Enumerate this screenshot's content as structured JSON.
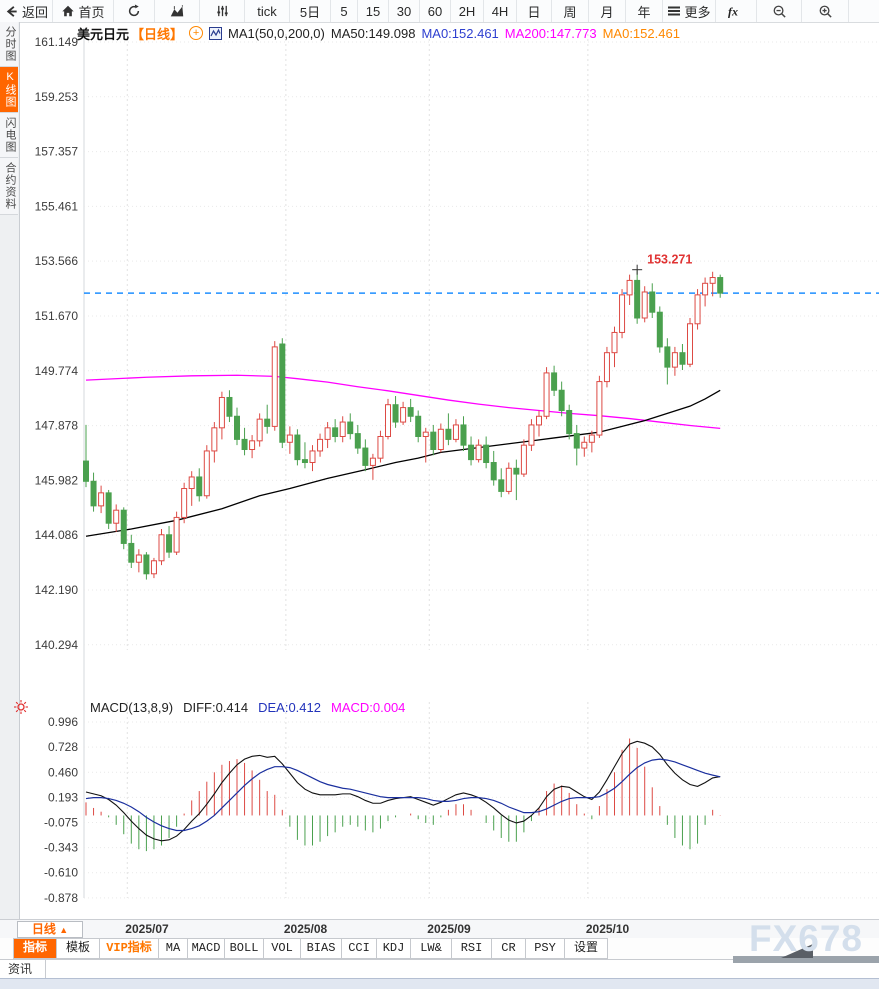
{
  "toolbar": {
    "items": [
      {
        "name": "back-button",
        "icon": "back",
        "label": "返回"
      },
      {
        "name": "home-button",
        "icon": "home",
        "label": "首页"
      },
      {
        "name": "refresh-button",
        "icon": "refresh",
        "label": ""
      },
      {
        "name": "area-chart-button",
        "icon": "area-chart",
        "label": ""
      },
      {
        "name": "indicator-sliders-button",
        "icon": "sliders",
        "label": ""
      },
      {
        "name": "timeframe-tick",
        "icon": "",
        "label": "tick"
      },
      {
        "name": "timeframe-5d",
        "icon": "",
        "label": "5日"
      },
      {
        "name": "timeframe-5min",
        "icon": "",
        "label": "5"
      },
      {
        "name": "timeframe-15min",
        "icon": "",
        "label": "15"
      },
      {
        "name": "timeframe-30min",
        "icon": "",
        "label": "30"
      },
      {
        "name": "timeframe-60min",
        "icon": "",
        "label": "60"
      },
      {
        "name": "timeframe-2h",
        "icon": "",
        "label": "2H"
      },
      {
        "name": "timeframe-4h",
        "icon": "",
        "label": "4H"
      },
      {
        "name": "timeframe-day",
        "icon": "",
        "label": "日"
      },
      {
        "name": "timeframe-week",
        "icon": "",
        "label": "周"
      },
      {
        "name": "timeframe-month",
        "icon": "",
        "label": "月"
      },
      {
        "name": "timeframe-year",
        "icon": "",
        "label": "年"
      },
      {
        "name": "more-button",
        "icon": "menu",
        "label": "更多"
      },
      {
        "name": "formula-button",
        "icon": "fx",
        "label": ""
      },
      {
        "name": "zoom-out-button",
        "icon": "zoom-out",
        "label": ""
      },
      {
        "name": "zoom-in-button",
        "icon": "zoom-in",
        "label": ""
      }
    ]
  },
  "sidebar": {
    "items": [
      {
        "label": "分时图",
        "active": false
      },
      {
        "label": "K线图",
        "active": true
      },
      {
        "label": "闪电图",
        "active": false
      },
      {
        "label": "合约资料",
        "active": false
      }
    ]
  },
  "legend": {
    "symbol": "美元日元",
    "period": "【日线】",
    "ma_config": "MA1(50,0,200,0)",
    "ma50": "MA50:149.098",
    "ma0_blue": "MA0:152.461",
    "ma200": "MA200:147.773",
    "ma0_orange": "MA0:152.461"
  },
  "macd_legend": {
    "title": "MACD(13,8,9)",
    "diff": "DIFF:0.414",
    "dea": "DEA:0.412",
    "macd": "MACD:0.004"
  },
  "bottom": {
    "timeframe_label": "日线",
    "timeframe_arrow": "▲",
    "indicator_tabs": [
      {
        "label": "指标",
        "style": "active"
      },
      {
        "label": "模板",
        "style": ""
      },
      {
        "label": "VIP指标",
        "style": "vip"
      },
      {
        "label": "MA",
        "style": ""
      },
      {
        "label": "MACD",
        "style": ""
      },
      {
        "label": "BOLL",
        "style": ""
      },
      {
        "label": "VOL",
        "style": ""
      },
      {
        "label": "BIAS",
        "style": ""
      },
      {
        "label": "CCI",
        "style": ""
      },
      {
        "label": "KDJ",
        "style": ""
      },
      {
        "label": "LW&",
        "style": ""
      },
      {
        "label": "RSI",
        "style": ""
      },
      {
        "label": "CR",
        "style": ""
      },
      {
        "label": "PSY",
        "style": ""
      },
      {
        "label": "设置",
        "style": ""
      }
    ],
    "news_tab": "资讯",
    "watermark": "FX678"
  },
  "colors": {
    "up": "#dd4a44",
    "down": "#4aa04e",
    "ma50": "#000000",
    "ma200": "#ff00ff",
    "last_price_line": "#1e8fff",
    "diff_line": "#111111",
    "dea_line": "#1a2f9e",
    "annotation": "#e03333",
    "legend_blue": "#2e3fd0",
    "legend_magenta": "#ff00ff",
    "legend_orange": "#ff8800",
    "accent_orange": "#ff6600",
    "grid": "#e9e9e9",
    "axis_text": "#3c3c3c"
  },
  "chart_data": [
    {
      "type": "candlestick",
      "title": "美元日元 日线 (USD/JPY daily)",
      "ylabel": "price",
      "grid": true,
      "y_ticks": [
        "161.149",
        "159.253",
        "157.357",
        "155.461",
        "153.566",
        "151.670",
        "149.774",
        "147.878",
        "145.982",
        "144.086",
        "142.190",
        "140.294"
      ],
      "x_month_markers": [
        {
          "index": 6,
          "label": "2025/07"
        },
        {
          "index": 27,
          "label": "2025/08"
        },
        {
          "index": 46,
          "label": "2025/09"
        },
        {
          "index": 67,
          "label": "2025/10"
        }
      ],
      "last_price": 152.461,
      "high_annotation": {
        "index": 73,
        "price": 153.271,
        "label": "153.271"
      },
      "candles": [
        [
          146.65,
          147.9,
          145.75,
          145.95
        ],
        [
          145.95,
          146.25,
          144.9,
          145.1
        ],
        [
          145.1,
          145.8,
          144.85,
          145.55
        ],
        [
          145.55,
          145.65,
          144.3,
          144.5
        ],
        [
          144.5,
          145.15,
          144.2,
          144.95
        ],
        [
          144.95,
          145.05,
          143.6,
          143.8
        ],
        [
          143.8,
          144.1,
          142.95,
          143.15
        ],
        [
          143.15,
          143.6,
          142.8,
          143.4
        ],
        [
          143.4,
          143.5,
          142.55,
          142.75
        ],
        [
          142.75,
          143.3,
          142.6,
          143.2
        ],
        [
          143.2,
          144.3,
          143.05,
          144.1
        ],
        [
          144.1,
          144.4,
          143.3,
          143.5
        ],
        [
          143.5,
          144.9,
          143.4,
          144.7
        ],
        [
          144.7,
          145.9,
          144.5,
          145.7
        ],
        [
          145.7,
          146.3,
          145.1,
          146.1
        ],
        [
          146.1,
          146.4,
          145.25,
          145.45
        ],
        [
          145.45,
          147.2,
          145.35,
          147.0
        ],
        [
          147.0,
          148.0,
          146.6,
          147.8
        ],
        [
          147.8,
          149.05,
          147.4,
          148.85
        ],
        [
          148.85,
          149.1,
          148.0,
          148.2
        ],
        [
          148.2,
          148.5,
          147.2,
          147.4
        ],
        [
          147.4,
          147.8,
          146.85,
          147.05
        ],
        [
          147.05,
          147.55,
          146.75,
          147.35
        ],
        [
          147.35,
          148.3,
          147.15,
          148.1
        ],
        [
          148.1,
          148.6,
          147.6,
          147.85
        ],
        [
          147.85,
          150.8,
          147.7,
          150.6
        ],
        [
          150.7,
          150.9,
          147.1,
          147.3
        ],
        [
          147.3,
          147.85,
          146.9,
          147.55
        ],
        [
          147.55,
          147.75,
          146.5,
          146.7
        ],
        [
          146.7,
          147.3,
          146.4,
          146.6
        ],
        [
          146.6,
          147.2,
          146.3,
          147.0
        ],
        [
          147.0,
          147.6,
          146.8,
          147.4
        ],
        [
          147.4,
          148.0,
          147.1,
          147.8
        ],
        [
          147.8,
          148.1,
          147.3,
          147.5
        ],
        [
          147.5,
          148.2,
          147.3,
          148.0
        ],
        [
          148.0,
          148.3,
          147.4,
          147.6
        ],
        [
          147.6,
          147.9,
          146.9,
          147.1
        ],
        [
          147.1,
          147.4,
          146.3,
          146.5
        ],
        [
          146.5,
          146.9,
          146.0,
          146.75
        ],
        [
          146.75,
          147.7,
          146.6,
          147.5
        ],
        [
          147.5,
          148.8,
          147.4,
          148.6
        ],
        [
          148.6,
          148.9,
          147.8,
          148.0
        ],
        [
          148.0,
          148.7,
          147.9,
          148.5
        ],
        [
          148.5,
          148.8,
          148.0,
          148.2
        ],
        [
          148.2,
          148.4,
          147.3,
          147.5
        ],
        [
          147.5,
          147.8,
          146.6,
          147.65
        ],
        [
          147.65,
          147.9,
          146.85,
          147.05
        ],
        [
          147.05,
          147.95,
          146.95,
          147.75
        ],
        [
          147.75,
          148.3,
          147.2,
          147.4
        ],
        [
          147.4,
          148.1,
          147.3,
          147.9
        ],
        [
          147.9,
          148.2,
          147.0,
          147.2
        ],
        [
          147.2,
          147.5,
          146.5,
          146.7
        ],
        [
          146.7,
          147.4,
          146.6,
          147.2
        ],
        [
          147.2,
          147.5,
          146.4,
          146.6
        ],
        [
          146.6,
          147.0,
          145.8,
          146.0
        ],
        [
          146.0,
          146.4,
          145.4,
          145.6
        ],
        [
          145.6,
          146.6,
          145.5,
          146.4
        ],
        [
          146.4,
          146.7,
          145.3,
          146.2
        ],
        [
          146.2,
          147.4,
          146.1,
          147.2
        ],
        [
          147.2,
          148.1,
          147.0,
          147.9
        ],
        [
          147.9,
          148.4,
          147.5,
          148.2
        ],
        [
          148.2,
          149.9,
          148.1,
          149.7
        ],
        [
          149.7,
          149.95,
          148.9,
          149.1
        ],
        [
          149.1,
          149.4,
          148.2,
          148.4
        ],
        [
          148.4,
          148.6,
          147.4,
          147.6
        ],
        [
          147.6,
          147.9,
          146.5,
          147.1
        ],
        [
          147.1,
          147.5,
          146.8,
          147.3
        ],
        [
          147.3,
          147.7,
          146.95,
          147.55
        ],
        [
          147.55,
          149.6,
          147.45,
          149.4
        ],
        [
          149.4,
          150.6,
          149.2,
          150.4
        ],
        [
          150.4,
          151.3,
          149.9,
          151.1
        ],
        [
          151.1,
          152.6,
          150.9,
          152.4
        ],
        [
          152.4,
          153.1,
          152.05,
          152.9
        ],
        [
          152.9,
          153.27,
          151.4,
          151.6
        ],
        [
          151.6,
          152.7,
          151.45,
          152.5
        ],
        [
          152.5,
          152.8,
          151.6,
          151.8
        ],
        [
          151.8,
          152.0,
          150.4,
          150.6
        ],
        [
          150.6,
          150.9,
          149.3,
          149.9
        ],
        [
          149.9,
          150.6,
          149.6,
          150.4
        ],
        [
          150.4,
          150.7,
          149.8,
          150.0
        ],
        [
          150.0,
          151.6,
          149.9,
          151.4
        ],
        [
          151.4,
          152.6,
          151.2,
          152.4
        ],
        [
          152.4,
          153.0,
          152.0,
          152.8
        ],
        [
          152.8,
          153.2,
          152.35,
          153.0
        ],
        [
          153.0,
          153.1,
          152.3,
          152.46
        ]
      ],
      "ma50_anchors": [
        [
          0,
          144.05
        ],
        [
          6,
          144.3
        ],
        [
          12,
          144.6
        ],
        [
          18,
          145.0
        ],
        [
          23,
          145.45
        ],
        [
          27,
          145.7
        ],
        [
          32,
          146.05
        ],
        [
          37,
          146.35
        ],
        [
          41,
          146.6
        ],
        [
          44,
          146.75
        ],
        [
          47,
          146.95
        ],
        [
          50,
          147.05
        ],
        [
          53,
          147.15
        ],
        [
          56,
          147.25
        ],
        [
          59,
          147.35
        ],
        [
          62,
          147.45
        ],
        [
          65,
          147.55
        ],
        [
          68,
          147.65
        ],
        [
          71,
          147.85
        ],
        [
          74,
          148.05
        ],
        [
          77,
          148.3
        ],
        [
          80,
          148.55
        ],
        [
          82,
          148.8
        ],
        [
          84,
          149.1
        ]
      ],
      "ma200_anchors": [
        [
          0,
          149.45
        ],
        [
          8,
          149.55
        ],
        [
          14,
          149.6
        ],
        [
          20,
          149.62
        ],
        [
          25,
          149.58
        ],
        [
          28,
          149.5
        ],
        [
          32,
          149.38
        ],
        [
          36,
          149.22
        ],
        [
          40,
          149.08
        ],
        [
          44,
          148.92
        ],
        [
          48,
          148.76
        ],
        [
          52,
          148.62
        ],
        [
          56,
          148.5
        ],
        [
          60,
          148.4
        ],
        [
          64,
          148.3
        ],
        [
          68,
          148.22
        ],
        [
          72,
          148.12
        ],
        [
          76,
          148.0
        ],
        [
          80,
          147.88
        ],
        [
          84,
          147.78
        ]
      ]
    },
    {
      "type": "bar",
      "title": "MACD(13,8,9)",
      "grid": true,
      "y_ticks": [
        "0.996",
        "0.728",
        "0.460",
        "0.193",
        "-0.075",
        "-0.343",
        "-0.610",
        "-0.878"
      ],
      "diff": [
        0.25,
        0.23,
        0.21,
        0.17,
        0.11,
        0.03,
        -0.06,
        -0.14,
        -0.21,
        -0.25,
        -0.27,
        -0.26,
        -0.22,
        -0.15,
        -0.06,
        0.02,
        0.12,
        0.23,
        0.35,
        0.45,
        0.54,
        0.6,
        0.63,
        0.64,
        0.62,
        0.63,
        0.55,
        0.45,
        0.35,
        0.28,
        0.24,
        0.22,
        0.22,
        0.22,
        0.23,
        0.23,
        0.2,
        0.16,
        0.13,
        0.13,
        0.16,
        0.18,
        0.19,
        0.2,
        0.17,
        0.14,
        0.11,
        0.14,
        0.18,
        0.22,
        0.24,
        0.22,
        0.19,
        0.14,
        0.08,
        0.01,
        -0.05,
        -0.08,
        -0.06,
        0.0,
        0.08,
        0.2,
        0.28,
        0.31,
        0.3,
        0.25,
        0.2,
        0.17,
        0.25,
        0.38,
        0.52,
        0.66,
        0.76,
        0.79,
        0.77,
        0.73,
        0.65,
        0.54,
        0.45,
        0.38,
        0.33,
        0.31,
        0.35,
        0.4,
        0.414
      ],
      "dea": [
        0.18,
        0.19,
        0.19,
        0.18,
        0.16,
        0.13,
        0.09,
        0.04,
        -0.02,
        -0.07,
        -0.11,
        -0.14,
        -0.16,
        -0.16,
        -0.14,
        -0.11,
        -0.06,
        0.0,
        0.08,
        0.16,
        0.24,
        0.32,
        0.39,
        0.45,
        0.49,
        0.52,
        0.52,
        0.51,
        0.48,
        0.44,
        0.4,
        0.36,
        0.33,
        0.31,
        0.29,
        0.28,
        0.26,
        0.24,
        0.22,
        0.2,
        0.19,
        0.19,
        0.19,
        0.19,
        0.19,
        0.18,
        0.16,
        0.15,
        0.15,
        0.16,
        0.18,
        0.19,
        0.19,
        0.18,
        0.16,
        0.13,
        0.09,
        0.06,
        0.03,
        0.03,
        0.04,
        0.07,
        0.11,
        0.15,
        0.18,
        0.19,
        0.19,
        0.19,
        0.2,
        0.24,
        0.29,
        0.36,
        0.44,
        0.51,
        0.56,
        0.59,
        0.6,
        0.59,
        0.57,
        0.54,
        0.51,
        0.48,
        0.45,
        0.43,
        0.412
      ],
      "hist": [
        0.14,
        0.08,
        0.04,
        -0.02,
        -0.1,
        -0.2,
        -0.3,
        -0.36,
        -0.38,
        -0.36,
        -0.32,
        -0.24,
        -0.12,
        0.02,
        0.16,
        0.26,
        0.36,
        0.46,
        0.54,
        0.58,
        0.6,
        0.56,
        0.48,
        0.38,
        0.26,
        0.22,
        0.06,
        -0.12,
        -0.26,
        -0.32,
        -0.32,
        -0.28,
        -0.22,
        -0.18,
        -0.12,
        -0.1,
        -0.12,
        -0.16,
        -0.18,
        -0.14,
        -0.06,
        -0.02,
        0.0,
        0.02,
        -0.04,
        -0.08,
        -0.1,
        -0.02,
        0.06,
        0.12,
        0.12,
        0.06,
        0.0,
        -0.08,
        -0.16,
        -0.24,
        -0.28,
        -0.28,
        -0.18,
        -0.06,
        0.08,
        0.26,
        0.34,
        0.32,
        0.24,
        0.12,
        0.02,
        -0.04,
        0.1,
        0.28,
        0.46,
        0.7,
        0.82,
        0.72,
        0.52,
        0.3,
        0.1,
        -0.1,
        -0.24,
        -0.32,
        -0.36,
        -0.3,
        -0.1,
        0.06,
        0.004
      ]
    }
  ]
}
